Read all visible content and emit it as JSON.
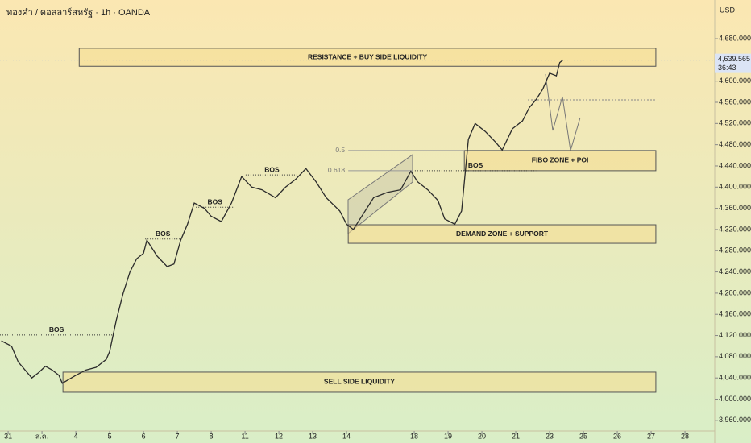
{
  "chart_data": {
    "type": "line",
    "title": "ทองคำ / ดอลลาร์สหรัฐ · 1h · OANDA",
    "currency": "USD",
    "xlim": [
      -0.24,
      20.88
    ],
    "ylim": [
      3940,
      4753
    ],
    "xticks": [
      {
        "value": 0,
        "label": "31"
      },
      {
        "value": 1,
        "label": "ส.ค."
      },
      {
        "value": 2,
        "label": "4"
      },
      {
        "value": 3,
        "label": "5"
      },
      {
        "value": 4,
        "label": "6"
      },
      {
        "value": 5,
        "label": "7"
      },
      {
        "value": 6,
        "label": "8"
      },
      {
        "value": 7,
        "label": "11"
      },
      {
        "value": 8,
        "label": "12"
      },
      {
        "value": 9,
        "label": "13"
      },
      {
        "value": 10,
        "label": "14"
      },
      {
        "value": 12,
        "label": "18"
      },
      {
        "value": 13,
        "label": "19"
      },
      {
        "value": 14,
        "label": "20"
      },
      {
        "value": 15,
        "label": "21"
      },
      {
        "value": 16,
        "label": "23"
      },
      {
        "value": 17,
        "label": "25"
      },
      {
        "value": 18,
        "label": "26"
      },
      {
        "value": 19,
        "label": "27"
      },
      {
        "value": 20,
        "label": "28"
      }
    ],
    "yticks": [
      {
        "value": 3960,
        "label": "3,960.000"
      },
      {
        "value": 4000,
        "label": "4,000.000"
      },
      {
        "value": 4040,
        "label": "4,040.000"
      },
      {
        "value": 4080,
        "label": "4,080.000"
      },
      {
        "value": 4120,
        "label": "4,120.000"
      },
      {
        "value": 4160,
        "label": "4,160.000"
      },
      {
        "value": 4200,
        "label": "4,200.000"
      },
      {
        "value": 4240,
        "label": "4,240.000"
      },
      {
        "value": 4280,
        "label": "4,280.000"
      },
      {
        "value": 4320,
        "label": "4,320.000"
      },
      {
        "value": 4360,
        "label": "4,360.000"
      },
      {
        "value": 4400,
        "label": "4,400.000"
      },
      {
        "value": 4440,
        "label": "4,440.000"
      },
      {
        "value": 4480,
        "label": "4,480.000"
      },
      {
        "value": 4520,
        "label": "4,520.000"
      },
      {
        "value": 4560,
        "label": "4,560.000"
      },
      {
        "value": 4600,
        "label": "4,600.000"
      },
      {
        "value": 4680,
        "label": "4,680.000"
      }
    ],
    "series": [
      {
        "color": "#2b2b2b",
        "x": [
          -0.2,
          0.1,
          0.3,
          0.5,
          0.7,
          0.9,
          1.1,
          1.3,
          1.5,
          1.6,
          2.0,
          2.3,
          2.6,
          2.9,
          3.0,
          3.2,
          3.4,
          3.6,
          3.8,
          4.0,
          4.1,
          4.4,
          4.7,
          4.9,
          5.1,
          5.3,
          5.5,
          5.8,
          6.0,
          6.3,
          6.6,
          6.9,
          7.2,
          7.5,
          7.9,
          8.2,
          8.5,
          8.8,
          9.1,
          9.4,
          9.8,
          10.0,
          10.2,
          10.5,
          10.8,
          11.2,
          11.6,
          11.9,
          12.1,
          12.4,
          12.7,
          12.9,
          13.2,
          13.4,
          13.6,
          13.8,
          14.1,
          14.4,
          14.6,
          14.9,
          15.2,
          15.4,
          15.6,
          15.8,
          16.0,
          16.2,
          16.3,
          16.4
        ],
        "values": [
          4110,
          4100,
          4070,
          4055,
          4040,
          4050,
          4062,
          4055,
          4045,
          4030,
          4045,
          4055,
          4060,
          4075,
          4090,
          4150,
          4200,
          4240,
          4265,
          4275,
          4300,
          4270,
          4250,
          4255,
          4300,
          4330,
          4370,
          4360,
          4345,
          4335,
          4370,
          4420,
          4400,
          4395,
          4380,
          4400,
          4415,
          4435,
          4410,
          4380,
          4355,
          4330,
          4320,
          4350,
          4380,
          4390,
          4395,
          4430,
          4410,
          4395,
          4375,
          4340,
          4330,
          4355,
          4490,
          4520,
          4505,
          4485,
          4470,
          4510,
          4525,
          4550,
          4565,
          4585,
          4615,
          4610,
          4635,
          4640
        ]
      }
    ],
    "zones": [
      {
        "label": "RESISTANCE + BUY SIDE LIQUIDITY",
        "low": 4628,
        "high": 4662,
        "x_start": 2.1,
        "x_end": 19.14
      },
      {
        "label": "FIBO ZONE + POI",
        "low": 4431,
        "high": 4469,
        "x_start": 13.48,
        "x_end": 19.14
      },
      {
        "label": "DEMAND ZONE + SUPPORT",
        "low": 4294,
        "high": 4329,
        "x_start": 10.05,
        "x_end": 19.14
      },
      {
        "label": "SELL SIDE LIQUIDITY",
        "low": 4013,
        "high": 4051,
        "x_start": 1.62,
        "x_end": 19.14
      }
    ],
    "levels": [
      {
        "label": "BOS",
        "value": 4121,
        "x_start": -0.24,
        "x_end": 3.1
      },
      {
        "label": "BOS",
        "value": 4302,
        "x_start": 4.05,
        "x_end": 5.1
      },
      {
        "label": "BOS",
        "value": 4362,
        "x_start": 5.55,
        "x_end": 6.67
      },
      {
        "label": "BOS",
        "value": 4423,
        "x_start": 7.02,
        "x_end": 8.57
      },
      {
        "label": "BOS",
        "value": 4431,
        "x_start": 12.02,
        "x_end": 15.6
      },
      {
        "label": "0.5",
        "value": 4469,
        "x_start": 10.05,
        "x_end": 13.48
      },
      {
        "label": "0.618",
        "value": 4431,
        "x_start": 10.05,
        "x_end": 11.95
      }
    ],
    "last_price": {
      "value": 4639.565,
      "label": "4,639.565"
    },
    "countdown": "36:43"
  }
}
